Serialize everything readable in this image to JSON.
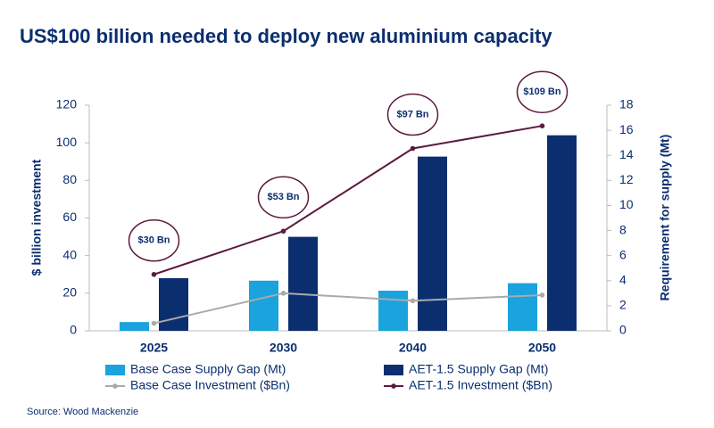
{
  "chart_data": {
    "type": "combo",
    "title": "US$100 billion needed to deploy new aluminium capacity",
    "y_label": "$ billion investment",
    "y2_label": "Requirement for supply (Mt)",
    "source": "Source: Wood Mackenzie",
    "categories": [
      "2025",
      "2030",
      "2040",
      "2050"
    ],
    "ylim": [
      0,
      120
    ],
    "yticks": [
      0,
      20,
      40,
      60,
      80,
      100,
      120
    ],
    "y2lim": [
      0,
      18
    ],
    "y2ticks": [
      0,
      2,
      4,
      6,
      8,
      10,
      12,
      14,
      16,
      18
    ],
    "grid": false,
    "series": [
      {
        "name": "Base Case Supply Gap (Mt)",
        "type": "bar",
        "axis": "y2",
        "color": "#1aa3dc",
        "values": [
          0.7,
          4.0,
          3.2,
          3.8
        ]
      },
      {
        "name": "AET-1.5 Supply Gap (Mt)",
        "type": "bar",
        "axis": "y2",
        "color": "#0b2e6f",
        "values": [
          4.2,
          7.5,
          13.9,
          15.6
        ]
      },
      {
        "name": "Base Case Investment ($Bn)",
        "type": "line",
        "color": "#aaaaaa",
        "values": [
          4,
          20,
          16,
          19
        ]
      },
      {
        "name": "AET-1.5 Investment ($Bn)",
        "type": "line",
        "color": "#5c1a3e",
        "values": [
          30,
          53,
          97,
          109
        ],
        "value_labels": [
          "$30 Bn",
          "$53 Bn",
          "$97 Bn",
          "$109 Bn"
        ]
      }
    ]
  }
}
